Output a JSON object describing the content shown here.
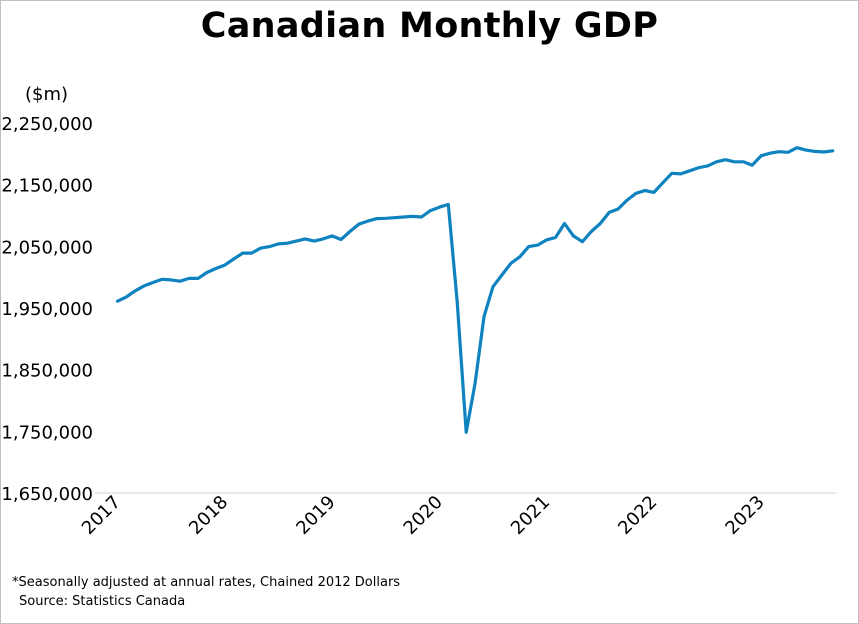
{
  "chart_data": {
    "type": "line",
    "title": "Canadian Monthly GDP",
    "ylabel": "($m)",
    "xlabel": "",
    "ylim": [
      1650000,
      2250000
    ],
    "yticks": [
      1650000,
      1750000,
      1850000,
      1950000,
      2050000,
      2150000,
      2250000
    ],
    "ytick_labels": [
      "1,650,000",
      "1,750,000",
      "1,850,000",
      "1,950,000",
      "2,050,000",
      "2,150,000",
      "2,250,000"
    ],
    "xtick_labels": [
      "2017",
      "2018",
      "2019",
      "2020",
      "2021",
      "2022",
      "2023"
    ],
    "x_start": "2017-01",
    "x_end": "2023-09",
    "grid": false,
    "legend": "none",
    "line_color": "#0E83C0",
    "series": [
      {
        "values": [
          1961000,
          1968000,
          1978000,
          1986000,
          1991500,
          1996500,
          1995500,
          1993500,
          1998000,
          1998000,
          2007500,
          2014000,
          2019500,
          2029500,
          2039000,
          2039000,
          2047000,
          2049500,
          2054000,
          2055000,
          2058500,
          2062000,
          2058500,
          2062000,
          2067000,
          2061000,
          2074000,
          2086000,
          2091000,
          2095000,
          2095500,
          2096500,
          2097500,
          2098500,
          2097500,
          2108000,
          2113500,
          2118000,
          1960000,
          1748500,
          1828000,
          1936000,
          1984500,
          2003500,
          2022500,
          2033000,
          2049500,
          2052000,
          2060500,
          2064500,
          2087000,
          2067000,
          2057500,
          2074000,
          2087000,
          2105000,
          2110500,
          2125000,
          2136000,
          2140500,
          2137500,
          2153000,
          2168500,
          2167500,
          2172500,
          2177500,
          2180500,
          2187000,
          2190500,
          2187000,
          2187000,
          2181500,
          2197000,
          2201000,
          2203500,
          2202500,
          2210000,
          2206000,
          2204000,
          2203000,
          2205000
        ]
      }
    ]
  },
  "footnote": {
    "line1": "*Seasonally adjusted at annual rates, Chained 2012 Dollars",
    "line2": "Source: Statistics Canada"
  }
}
